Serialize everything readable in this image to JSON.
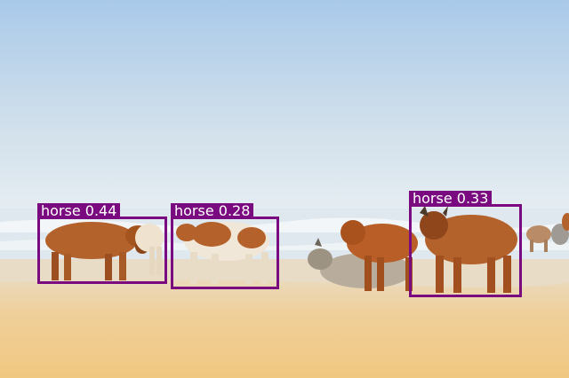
{
  "detections": [
    {
      "label": "horse",
      "score": "0.44",
      "text": "horse 0.44",
      "color": "#7a0a7f"
    },
    {
      "label": "horse",
      "score": "0.28",
      "text": "horse 0.28",
      "color": "#7a0a7f"
    },
    {
      "label": "horse",
      "score": "0.33",
      "text": "horse 0.33",
      "color": "#7a0a7f"
    }
  ],
  "colors": {
    "sky_top": "#a9c9ea",
    "sky_bottom": "#e7eef2",
    "sea": "#dfe8ee",
    "sand_wet": "#ecd8b2",
    "sand_dry": "#efc98a",
    "cattle_brown": "#b4622c",
    "box": "#7a0a7f"
  }
}
